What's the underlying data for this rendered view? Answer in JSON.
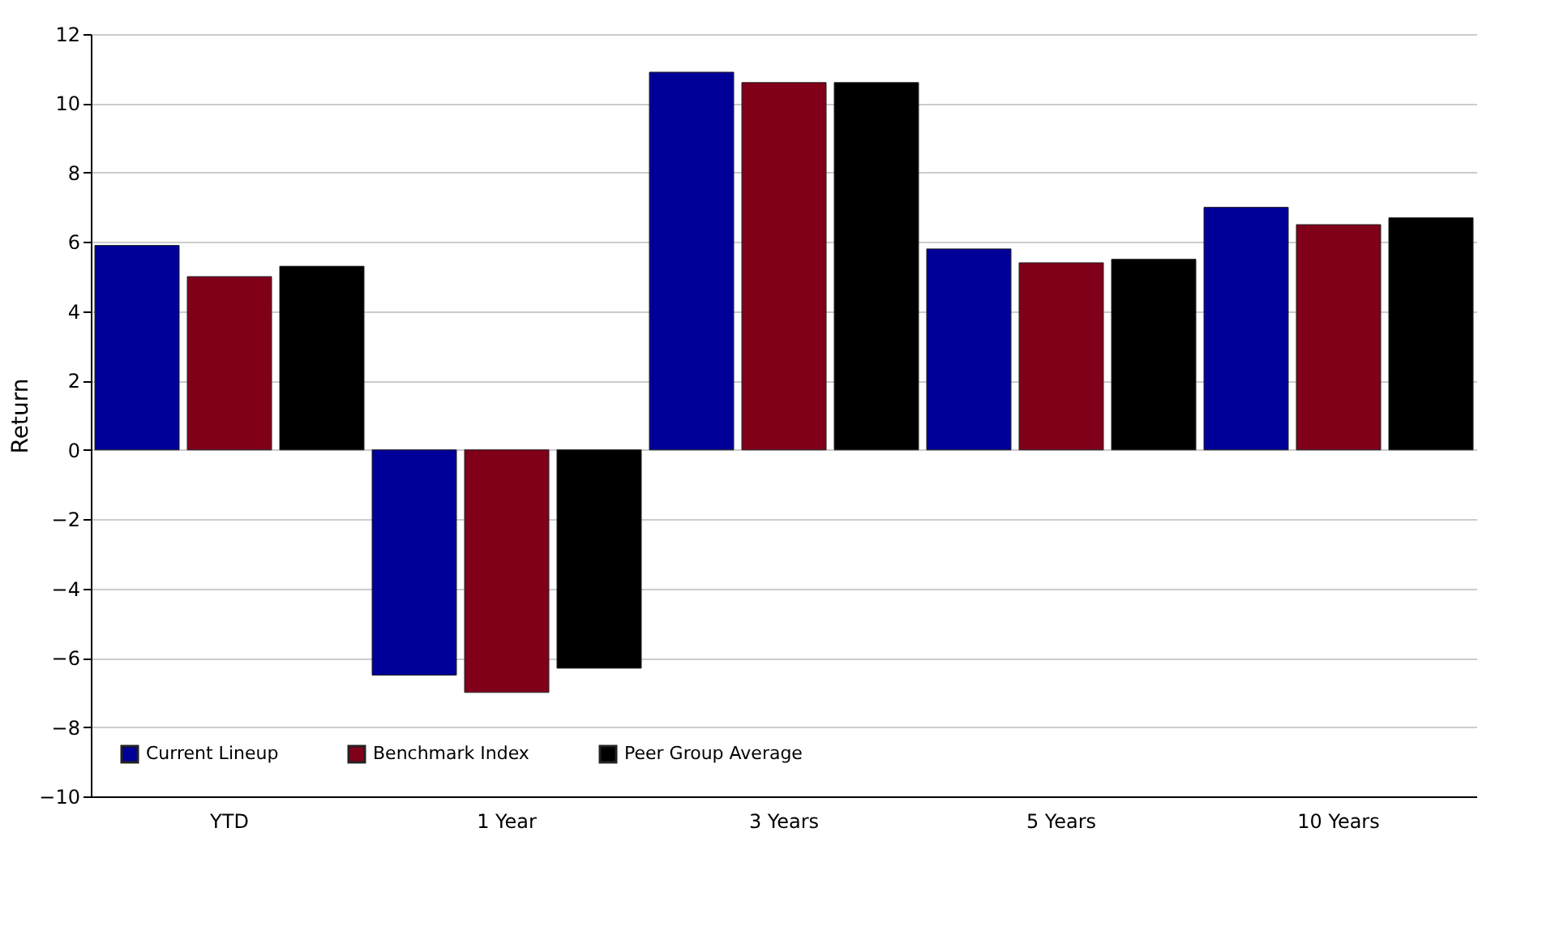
{
  "chart_data": {
    "type": "bar",
    "ylabel": "Return",
    "categories": [
      "YTD",
      "1 Year",
      "3 Years",
      "5 Years",
      "10 Years"
    ],
    "series": [
      {
        "name": "Current Lineup",
        "color": "#000099",
        "values": [
          5.9,
          -6.5,
          10.9,
          5.8,
          7.0
        ]
      },
      {
        "name": "Benchmark Index",
        "color": "#80001a",
        "values": [
          5.0,
          -7.0,
          10.6,
          5.4,
          6.5
        ]
      },
      {
        "name": "Peer Group Average",
        "color": "#000000",
        "values": [
          5.3,
          -6.3,
          10.6,
          5.5,
          6.7
        ]
      }
    ],
    "ylim": [
      -10,
      12
    ],
    "yticks": [
      -10,
      -8,
      -6,
      -4,
      -2,
      0,
      2,
      4,
      6,
      8,
      10,
      12
    ],
    "grid": "y",
    "legend": "bottom left"
  }
}
